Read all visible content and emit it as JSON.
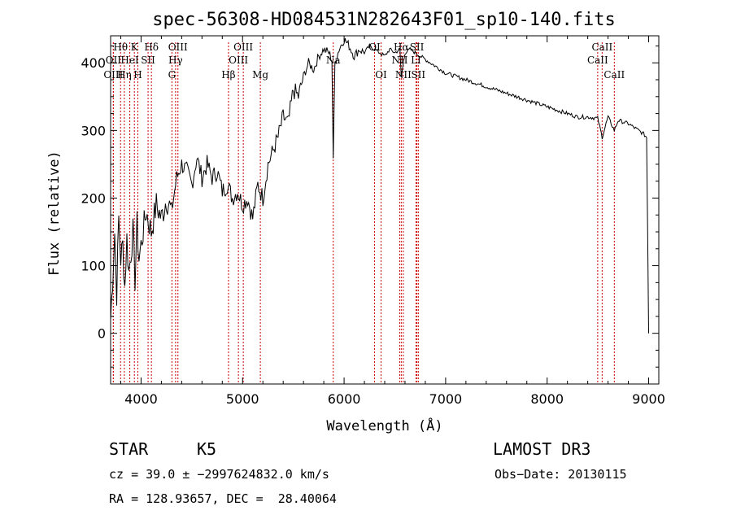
{
  "chart_data": {
    "type": "line",
    "title": "spec-56308-HD084531N282643F01_sp10-140.fits",
    "xlabel": "Wavelength (Å)",
    "ylabel": "Flux (relative)",
    "xlim": [
      3700,
      9100
    ],
    "ylim": [
      -75,
      440
    ],
    "xticks": [
      4000,
      5000,
      6000,
      7000,
      8000,
      9000
    ],
    "yticks": [
      0,
      100,
      200,
      300,
      400
    ],
    "series": [
      {
        "name": "spectrum",
        "x": [
          3700,
          3720,
          3740,
          3760,
          3780,
          3800,
          3820,
          3840,
          3860,
          3880,
          3900,
          3920,
          3940,
          3960,
          3980,
          4000,
          4050,
          4100,
          4150,
          4200,
          4250,
          4300,
          4350,
          4400,
          4450,
          4500,
          4550,
          4600,
          4650,
          4700,
          4750,
          4800,
          4850,
          4900,
          4950,
          5000,
          5050,
          5100,
          5150,
          5200,
          5250,
          5300,
          5350,
          5400,
          5450,
          5500,
          5550,
          5600,
          5650,
          5700,
          5750,
          5800,
          5850,
          5880,
          5893,
          5910,
          5950,
          6000,
          6050,
          6100,
          6150,
          6200,
          6250,
          6300,
          6350,
          6400,
          6450,
          6500,
          6550,
          6563,
          6600,
          6650,
          6700,
          6750,
          6800,
          6900,
          7000,
          7100,
          7200,
          7300,
          7400,
          7500,
          7600,
          7700,
          7800,
          7900,
          8000,
          8100,
          8200,
          8300,
          8400,
          8498,
          8542,
          8600,
          8662,
          8700,
          8800,
          8850,
          8900,
          8950,
          8980,
          8990,
          9000
        ],
        "y": [
          20,
          80,
          150,
          60,
          170,
          110,
          130,
          70,
          140,
          90,
          120,
          150,
          80,
          160,
          110,
          130,
          180,
          150,
          190,
          170,
          200,
          180,
          230,
          250,
          240,
          220,
          260,
          230,
          250,
          230,
          240,
          210,
          220,
          200,
          210,
          190,
          200,
          170,
          220,
          200,
          250,
          270,
          290,
          320,
          310,
          360,
          350,
          380,
          400,
          390,
          410,
          420,
          415,
          405,
          260,
          400,
          420,
          435,
          425,
          410,
          420,
          415,
          425,
          420,
          415,
          410,
          420,
          415,
          420,
          380,
          415,
          420,
          415,
          410,
          405,
          395,
          385,
          380,
          375,
          370,
          365,
          360,
          355,
          350,
          345,
          340,
          335,
          330,
          325,
          320,
          320,
          318,
          290,
          320,
          300,
          315,
          310,
          305,
          300,
          295,
          290,
          150,
          0
        ]
      }
    ],
    "spectral_lines": [
      {
        "label": "Hθ",
        "wavelength": 3798,
        "row": 1
      },
      {
        "label": "OII",
        "wavelength": 3727,
        "row": 2
      },
      {
        "label": "OIII",
        "wavelength": 3727,
        "row": 3
      },
      {
        "label": "Hη",
        "wavelength": 3835,
        "row": 3
      },
      {
        "label": "K",
        "wavelength": 3934,
        "row": 1
      },
      {
        "label": "HeI",
        "wavelength": 3889,
        "row": 2
      },
      {
        "label": "H",
        "wavelength": 3968,
        "row": 3
      },
      {
        "label": "SII",
        "wavelength": 4069,
        "row": 2
      },
      {
        "label": "Hδ",
        "wavelength": 4102,
        "row": 1
      },
      {
        "label": "OIII",
        "wavelength": 4363,
        "row": 1
      },
      {
        "label": "Hγ",
        "wavelength": 4340,
        "row": 2
      },
      {
        "label": "G",
        "wavelength": 4304,
        "row": 3
      },
      {
        "label": "Hβ",
        "wavelength": 4861,
        "row": 3
      },
      {
        "label": "OIII",
        "wavelength": 5007,
        "row": 1
      },
      {
        "label": "OIII",
        "wavelength": 4959,
        "row": 2
      },
      {
        "label": "Mg",
        "wavelength": 5175,
        "row": 3
      },
      {
        "label": "Na",
        "wavelength": 5893,
        "row": 2
      },
      {
        "label": "OI",
        "wavelength": 6300,
        "row": 1
      },
      {
        "label": "OI",
        "wavelength": 6364,
        "row": 3
      },
      {
        "label": "Hα",
        "wavelength": 6563,
        "row": 1
      },
      {
        "label": "NII",
        "wavelength": 6548,
        "row": 2
      },
      {
        "label": "NII",
        "wavelength": 6583,
        "row": 3
      },
      {
        "label": "SII",
        "wavelength": 6717,
        "row": 1
      },
      {
        "label": "LI",
        "wavelength": 6708,
        "row": 2
      },
      {
        "label": "SII",
        "wavelength": 6731,
        "row": 3
      },
      {
        "label": "CaII",
        "wavelength": 8542,
        "row": 1
      },
      {
        "label": "CaII",
        "wavelength": 8498,
        "row": 2
      },
      {
        "label": "CaII",
        "wavelength": 8662,
        "row": 3
      }
    ]
  },
  "info": {
    "object_class": "STAR",
    "subclass": "K5",
    "survey": "LAMOST DR3",
    "cz_line": "cz = 39.0 ± −2997624832.0 km/s",
    "obs_date": "Obs−Date: 20130115",
    "coords": "RA = 128.93657, DEC =  28.40064"
  },
  "colors": {
    "spectrum": "#000000",
    "line_marker": "#cc0000",
    "axes": "#000000",
    "background": "#ffffff"
  }
}
